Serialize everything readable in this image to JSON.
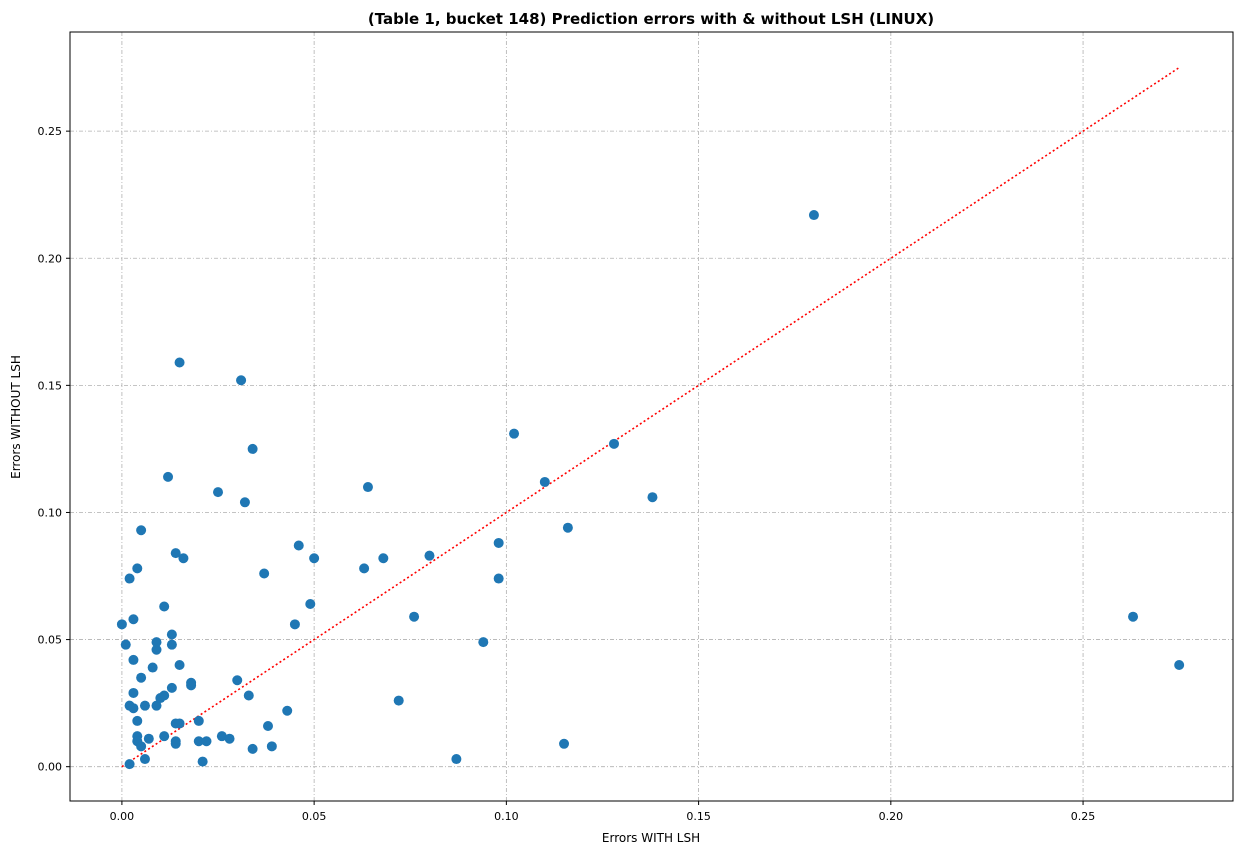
{
  "chart_data": {
    "type": "scatter",
    "title": "(Table 1, bucket 148) Prediction errors with & without LSH (LINUX)",
    "xlabel": "Errors WITH LSH",
    "ylabel": "Errors WITHOUT LSH",
    "xlim": [
      -0.0135,
      0.289
    ],
    "ylim": [
      -0.0135,
      0.289
    ],
    "xticks": [
      0.0,
      0.05,
      0.1,
      0.15,
      0.2,
      0.25
    ],
    "xtick_labels": [
      "0.00",
      "0.05",
      "0.10",
      "0.15",
      "0.20",
      "0.25"
    ],
    "yticks": [
      0.0,
      0.05,
      0.1,
      0.15,
      0.2,
      0.25
    ],
    "ytick_labels": [
      "0.00",
      "0.05",
      "0.10",
      "0.15",
      "0.20",
      "0.25"
    ],
    "grid": true,
    "point_color": "#1f77b4",
    "reference_line": {
      "from": [
        0.0,
        0.0
      ],
      "to": [
        0.275,
        0.275
      ],
      "color": "#ff0000",
      "style": "dotted"
    },
    "points": [
      [
        0.0,
        0.056
      ],
      [
        0.001,
        0.048
      ],
      [
        0.002,
        0.001
      ],
      [
        0.002,
        0.024
      ],
      [
        0.003,
        0.023
      ],
      [
        0.002,
        0.074
      ],
      [
        0.003,
        0.058
      ],
      [
        0.003,
        0.042
      ],
      [
        0.003,
        0.029
      ],
      [
        0.004,
        0.018
      ],
      [
        0.004,
        0.012
      ],
      [
        0.004,
        0.01
      ],
      [
        0.005,
        0.008
      ],
      [
        0.004,
        0.078
      ],
      [
        0.005,
        0.093
      ],
      [
        0.005,
        0.035
      ],
      [
        0.006,
        0.024
      ],
      [
        0.006,
        0.003
      ],
      [
        0.007,
        0.011
      ],
      [
        0.008,
        0.039
      ],
      [
        0.009,
        0.046
      ],
      [
        0.009,
        0.049
      ],
      [
        0.009,
        0.024
      ],
      [
        0.01,
        0.027
      ],
      [
        0.011,
        0.028
      ],
      [
        0.011,
        0.063
      ],
      [
        0.011,
        0.012
      ],
      [
        0.012,
        0.114
      ],
      [
        0.013,
        0.052
      ],
      [
        0.013,
        0.048
      ],
      [
        0.013,
        0.031
      ],
      [
        0.014,
        0.084
      ],
      [
        0.014,
        0.017
      ],
      [
        0.014,
        0.01
      ],
      [
        0.014,
        0.009
      ],
      [
        0.015,
        0.159
      ],
      [
        0.015,
        0.04
      ],
      [
        0.015,
        0.017
      ],
      [
        0.016,
        0.082
      ],
      [
        0.018,
        0.032
      ],
      [
        0.018,
        0.033
      ],
      [
        0.02,
        0.018
      ],
      [
        0.02,
        0.01
      ],
      [
        0.021,
        0.002
      ],
      [
        0.022,
        0.01
      ],
      [
        0.025,
        0.108
      ],
      [
        0.026,
        0.012
      ],
      [
        0.028,
        0.011
      ],
      [
        0.03,
        0.034
      ],
      [
        0.031,
        0.152
      ],
      [
        0.032,
        0.104
      ],
      [
        0.033,
        0.028
      ],
      [
        0.034,
        0.125
      ],
      [
        0.034,
        0.007
      ],
      [
        0.037,
        0.076
      ],
      [
        0.038,
        0.016
      ],
      [
        0.039,
        0.008
      ],
      [
        0.043,
        0.022
      ],
      [
        0.045,
        0.056
      ],
      [
        0.046,
        0.087
      ],
      [
        0.049,
        0.064
      ],
      [
        0.05,
        0.082
      ],
      [
        0.063,
        0.078
      ],
      [
        0.064,
        0.11
      ],
      [
        0.068,
        0.082
      ],
      [
        0.072,
        0.026
      ],
      [
        0.076,
        0.059
      ],
      [
        0.08,
        0.083
      ],
      [
        0.087,
        0.003
      ],
      [
        0.094,
        0.049
      ],
      [
        0.098,
        0.088
      ],
      [
        0.098,
        0.074
      ],
      [
        0.102,
        0.131
      ],
      [
        0.11,
        0.112
      ],
      [
        0.115,
        0.009
      ],
      [
        0.116,
        0.094
      ],
      [
        0.128,
        0.127
      ],
      [
        0.138,
        0.106
      ],
      [
        0.18,
        0.217
      ],
      [
        0.263,
        0.059
      ],
      [
        0.275,
        0.04
      ]
    ]
  }
}
